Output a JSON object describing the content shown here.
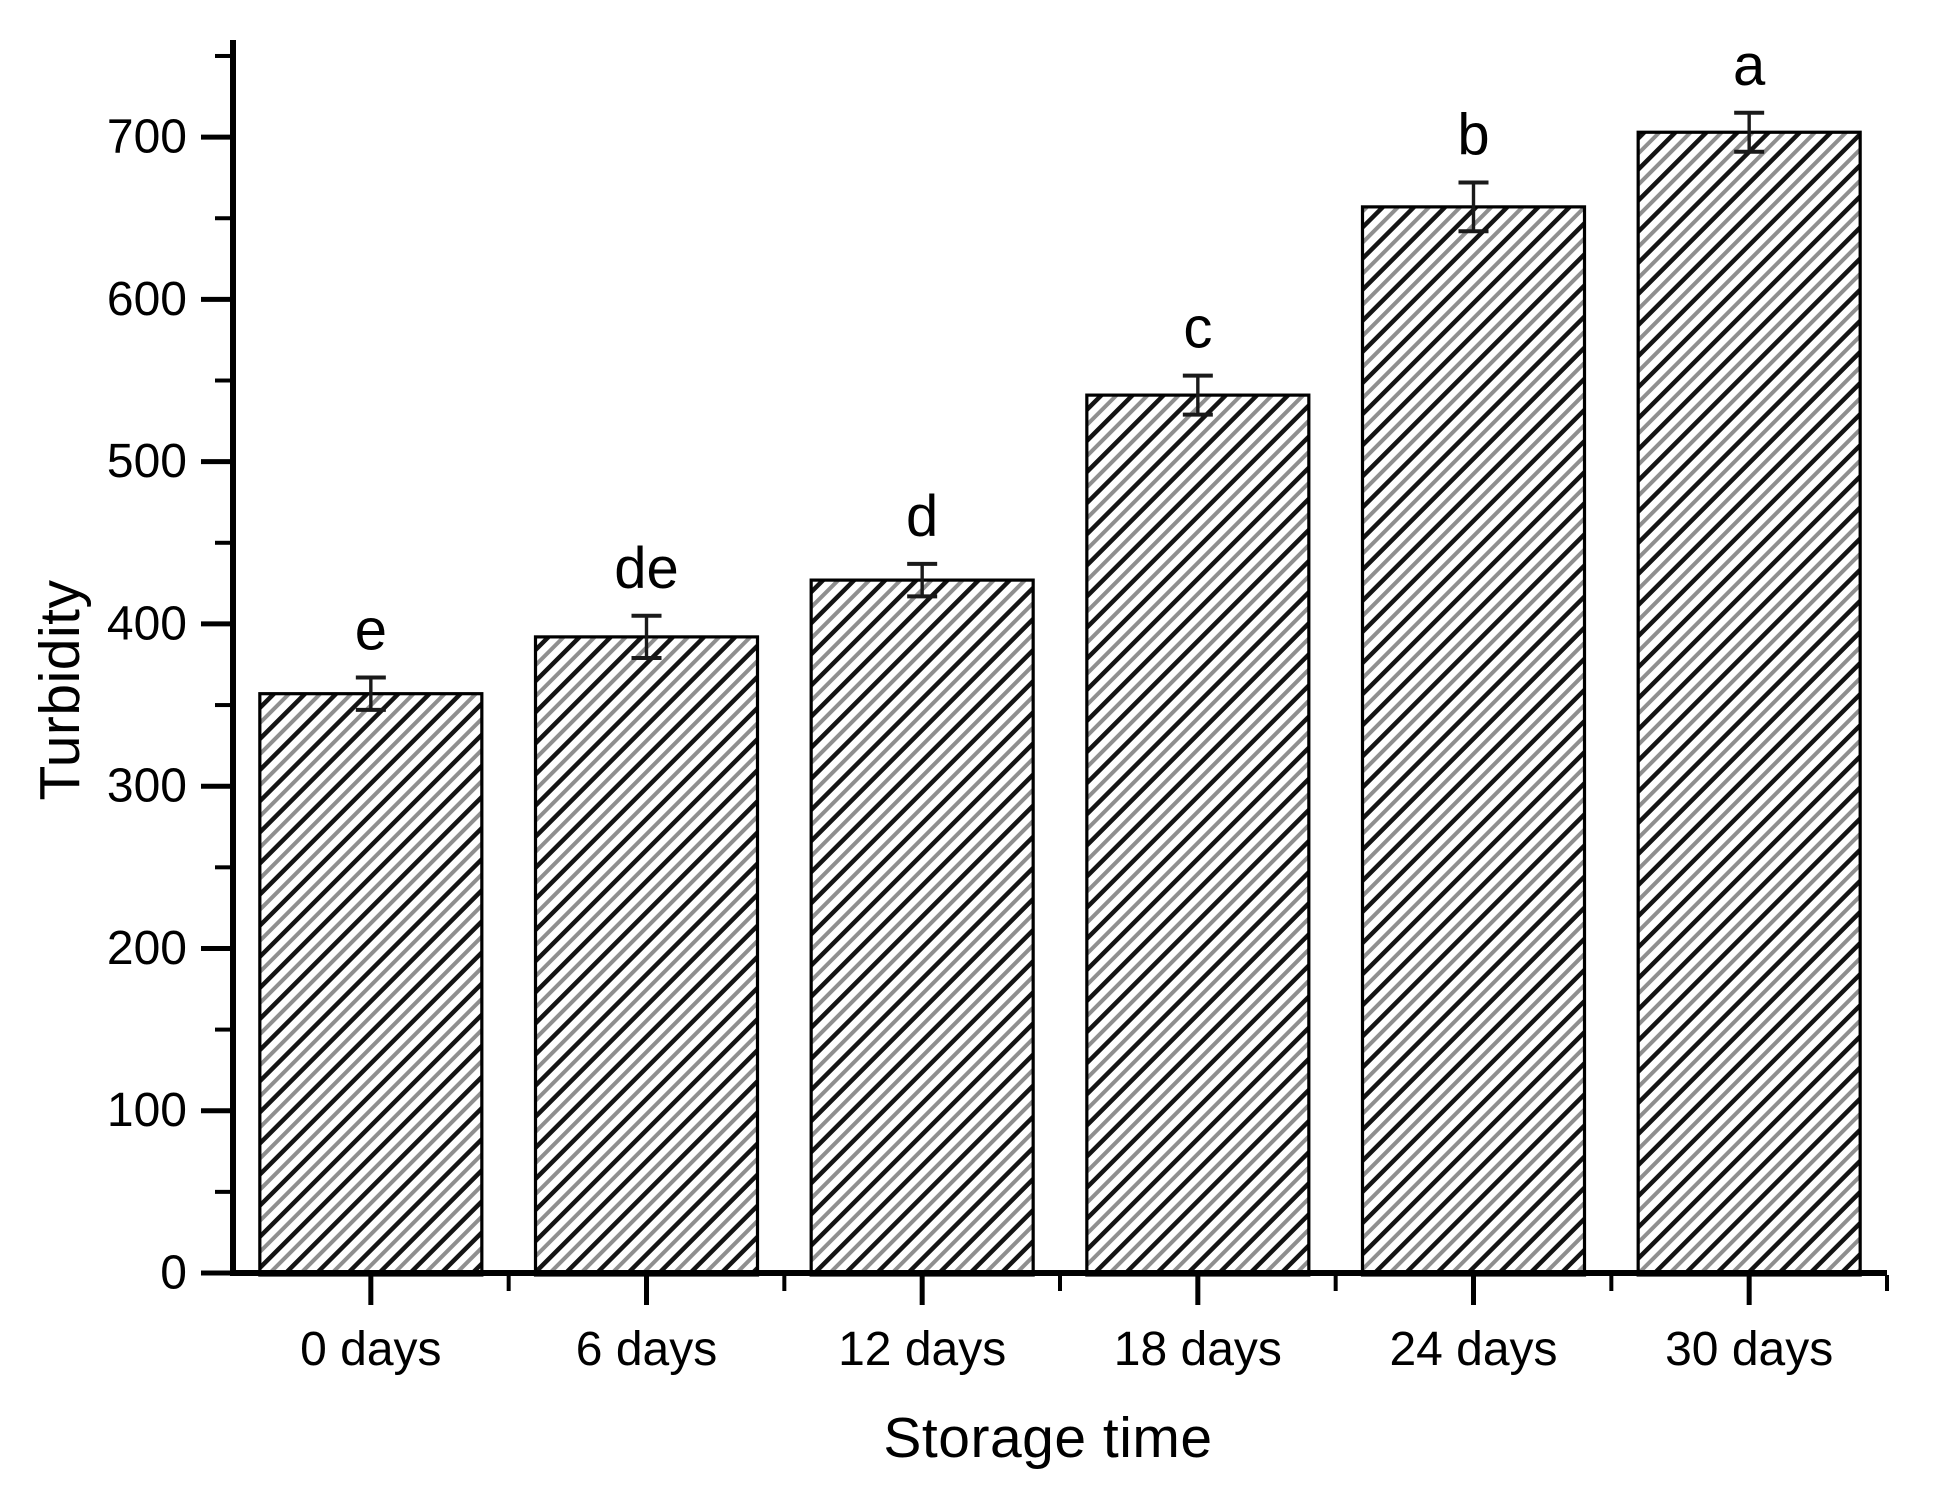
{
  "figure": {
    "background": "#ffffff",
    "ink_color": "#000000",
    "hatch_secondary_color": "#8f8f8f"
  },
  "chart_data": {
    "type": "bar",
    "title": "",
    "xlabel": "Storage time",
    "ylabel": "Turbidity",
    "categories": [
      "0 days",
      "6 days",
      "12 days",
      "18 days",
      "24 days",
      "30 days"
    ],
    "values": [
      357,
      392,
      427,
      541,
      657,
      703
    ],
    "error_bars": [
      10,
      13,
      10,
      12,
      15,
      12
    ],
    "sig_letters": [
      "e",
      "de",
      "d",
      "c",
      "b",
      "a"
    ],
    "ylim": [
      0,
      760
    ],
    "y_major_ticks": [
      0,
      100,
      200,
      300,
      400,
      500,
      600,
      700
    ],
    "y_minor_ticks": [
      50,
      150,
      250,
      350,
      450,
      550,
      650,
      750
    ],
    "grid": false,
    "legend": null,
    "bar_fill": "diagonal-hatch",
    "bar_edge_color": "#000000",
    "error_bar_color": "#1a1a1a"
  }
}
